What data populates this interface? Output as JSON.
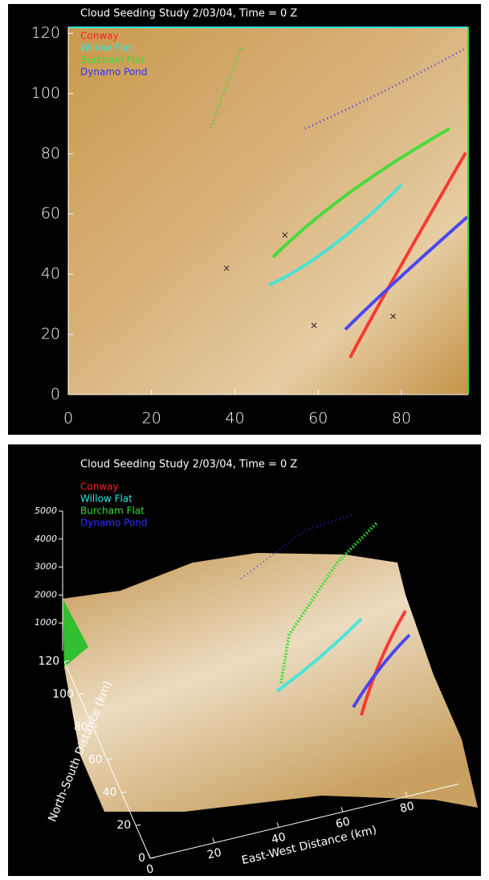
{
  "chart_data": [
    {
      "type": "map",
      "title": "Cloud Seeding Study 2/03/04, Time = 0 Z",
      "series": [
        {
          "name": "Conway",
          "color": "#ff2020"
        },
        {
          "name": "Willow Flat",
          "color": "#30e8e0"
        },
        {
          "name": "Burcham Flat",
          "color": "#30e030"
        },
        {
          "name": "Dynamo Pond",
          "color": "#3030ff"
        }
      ],
      "xlim": [
        0,
        96
      ],
      "ylim": [
        0,
        122
      ],
      "xticks": [
        0,
        20,
        40,
        60,
        80
      ],
      "yticks": [
        0,
        20,
        40,
        60,
        80,
        100,
        120
      ],
      "markers": {
        "x": [
          38,
          52,
          59,
          78
        ],
        "y": [
          42,
          53,
          23,
          26
        ]
      }
    },
    {
      "type": "surface3d",
      "title": "Cloud Seeding Study 2/03/04, Time = 0 Z",
      "series": [
        {
          "name": "Conway",
          "color": "#ff2020"
        },
        {
          "name": "Willow Flat",
          "color": "#30e8e0"
        },
        {
          "name": "Burcham Flat",
          "color": "#30e030"
        },
        {
          "name": "Dynamo Pond",
          "color": "#3030ff"
        }
      ],
      "xlabel": "East-West Distance (km)",
      "ylabel": "North-South Distance (km)",
      "xlim": [
        0,
        96
      ],
      "ylim": [
        0,
        120
      ],
      "zlim": [
        0,
        5000
      ],
      "xticks": [
        0,
        20,
        40,
        60,
        80
      ],
      "yticks": [
        0,
        20,
        40,
        60,
        80,
        100,
        120
      ],
      "zticks": [
        1000,
        2000,
        3000,
        4000,
        5000
      ]
    }
  ]
}
